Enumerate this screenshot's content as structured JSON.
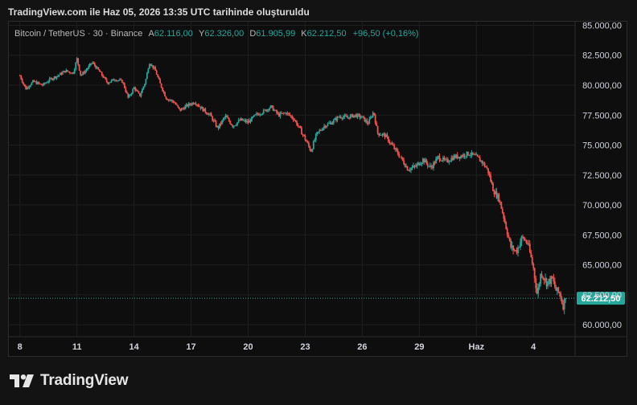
{
  "header": {
    "title": "TradingView.com ile Haz 05, 2026 13:35 UTC tarihinde oluşturuldu"
  },
  "legend": {
    "symbol": "Bitcoin / TetherUS · 30 · Binance",
    "open_label": "A",
    "open_value": "62.116,00",
    "high_label": "Y",
    "high_value": "62.326,00",
    "low_label": "D",
    "low_value": "61.905,99",
    "close_label": "K",
    "close_value": "62.212,50",
    "change": "+96,50 (+0,16%)"
  },
  "brand": {
    "name": "TradingView"
  },
  "colors": {
    "up": "#26a69a",
    "down": "#ef5350",
    "grid": "#1f1f1f",
    "axis_text": "#d1d4dc",
    "last_price_bg": "#26a69a"
  },
  "chart_data": {
    "type": "candlestick",
    "y_ticks": [
      "60.000,00",
      "62.500,00",
      "65.000,00",
      "67.500,00",
      "70.000,00",
      "72.500,00",
      "75.000,00",
      "77.500,00",
      "80.000,00",
      "82.500,00",
      "85.000,00"
    ],
    "y_tick_values": [
      60000,
      62500,
      65000,
      67500,
      70000,
      72500,
      75000,
      77500,
      80000,
      82500,
      85000
    ],
    "ylim": [
      59000,
      85300
    ],
    "x_ticks": [
      "8",
      "11",
      "14",
      "17",
      "20",
      "23",
      "26",
      "29",
      "Haz",
      "4"
    ],
    "x_tick_days": [
      0,
      3,
      6,
      9,
      12,
      15,
      18,
      21,
      24,
      27
    ],
    "xlim_days": [
      -0.2,
      28.85
    ],
    "last_price": 62212.5,
    "last_price_label": "62.212,50",
    "grid": true,
    "close_path": [
      [
        0,
        80800
      ],
      [
        0.3,
        79700
      ],
      [
        0.7,
        80300
      ],
      [
        1.2,
        80000
      ],
      [
        1.6,
        80500
      ],
      [
        2.0,
        80800
      ],
      [
        2.4,
        81200
      ],
      [
        2.8,
        81000
      ],
      [
        3.0,
        82200
      ],
      [
        3.2,
        80800
      ],
      [
        3.5,
        81300
      ],
      [
        3.8,
        81900
      ],
      [
        4.2,
        81100
      ],
      [
        4.6,
        80200
      ],
      [
        5.0,
        80500
      ],
      [
        5.4,
        80300
      ],
      [
        5.7,
        78900
      ],
      [
        6.0,
        79800
      ],
      [
        6.3,
        79100
      ],
      [
        6.6,
        80300
      ],
      [
        6.8,
        81900
      ],
      [
        7.1,
        81300
      ],
      [
        7.4,
        80000
      ],
      [
        7.7,
        78900
      ],
      [
        8.1,
        78600
      ],
      [
        8.4,
        77900
      ],
      [
        8.8,
        78300
      ],
      [
        9.2,
        78600
      ],
      [
        9.6,
        78000
      ],
      [
        10.0,
        77500
      ],
      [
        10.4,
        76400
      ],
      [
        10.8,
        77400
      ],
      [
        11.2,
        76600
      ],
      [
        11.6,
        77100
      ],
      [
        12.0,
        76900
      ],
      [
        12.4,
        77500
      ],
      [
        12.8,
        77800
      ],
      [
        13.2,
        78200
      ],
      [
        13.6,
        77500
      ],
      [
        14.0,
        77700
      ],
      [
        14.4,
        77200
      ],
      [
        14.7,
        76400
      ],
      [
        15.0,
        75500
      ],
      [
        15.3,
        74500
      ],
      [
        15.6,
        75900
      ],
      [
        16.0,
        76600
      ],
      [
        16.4,
        76900
      ],
      [
        16.8,
        77400
      ],
      [
        17.2,
        77300
      ],
      [
        17.6,
        77500
      ],
      [
        18.0,
        77300
      ],
      [
        18.3,
        76800
      ],
      [
        18.6,
        77800
      ],
      [
        18.8,
        76000
      ],
      [
        19.2,
        75800
      ],
      [
        19.6,
        74900
      ],
      [
        20.0,
        74000
      ],
      [
        20.4,
        73000
      ],
      [
        20.8,
        73200
      ],
      [
        21.2,
        73800
      ],
      [
        21.6,
        73100
      ],
      [
        22.0,
        74000
      ],
      [
        22.4,
        73600
      ],
      [
        22.8,
        74000
      ],
      [
        23.2,
        74100
      ],
      [
        23.6,
        74300
      ],
      [
        24.0,
        74000
      ],
      [
        24.3,
        73600
      ],
      [
        24.6,
        72900
      ],
      [
        24.9,
        71200
      ],
      [
        25.2,
        70500
      ],
      [
        25.5,
        68600
      ],
      [
        25.8,
        66500
      ],
      [
        26.1,
        66100
      ],
      [
        26.4,
        67300
      ],
      [
        26.7,
        66800
      ],
      [
        27.0,
        64700
      ],
      [
        27.2,
        62500
      ],
      [
        27.4,
        64400
      ],
      [
        27.7,
        63500
      ],
      [
        28.0,
        63800
      ],
      [
        28.2,
        62800
      ],
      [
        28.4,
        62600
      ],
      [
        28.55,
        61600
      ],
      [
        28.7,
        62212.5
      ]
    ]
  }
}
